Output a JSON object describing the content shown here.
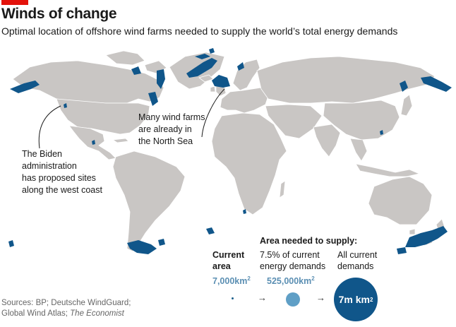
{
  "header": {
    "title": "Winds of change",
    "subtitle": "Optimal location of offshore wind farms needed to supply the world’s total energy demands"
  },
  "annotations": {
    "north_sea": [
      "Many wind farms",
      "are already in",
      "the North Sea"
    ],
    "west_coast": [
      "The Biden",
      "administration",
      "has proposed sites",
      "along the west coast"
    ]
  },
  "legend": {
    "heading": "Area needed to supply:",
    "current_label": [
      "Current",
      "area"
    ],
    "pct_label": [
      "7.5% of current",
      "energy demands"
    ],
    "all_label": [
      "All current",
      "demands"
    ],
    "current_value": "7,000km",
    "pct_value": "525,000km",
    "all_value": "7m km",
    "unit_sup": "2",
    "arrow": "→"
  },
  "source": {
    "prefix": "Sources: BP; Deutsche WindGuard;",
    "line2_prefix": "Global Wind Atlas; ",
    "publication": "The Economist"
  },
  "colors": {
    "land": "#c9c6c4",
    "wind_sites": "#10568a",
    "accent": "#e3120b"
  }
}
